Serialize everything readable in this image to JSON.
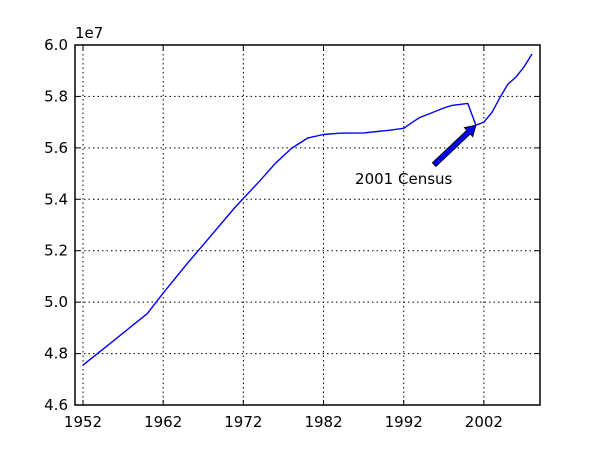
{
  "chart_data": {
    "type": "line",
    "title": "",
    "xlabel": "",
    "ylabel": "",
    "xlim": [
      1951,
      2009
    ],
    "ylim": [
      46000000,
      60000000
    ],
    "y_offset_text": "1e7",
    "x_ticks": [
      1952,
      1962,
      1972,
      1982,
      1992,
      2002
    ],
    "y_ticks": [
      46000000,
      48000000,
      50000000,
      52000000,
      54000000,
      56000000,
      58000000,
      60000000
    ],
    "x_tick_labels": [
      "1952",
      "1962",
      "1972",
      "1982",
      "1992",
      "2002"
    ],
    "y_tick_labels": [
      "4.6",
      "4.8",
      "5.0",
      "5.2",
      "5.4",
      "5.6",
      "5.8",
      "6.0"
    ],
    "grid": true,
    "series": [
      {
        "color": "#0000ff",
        "x": [
          1952,
          1955,
          1958,
          1960,
          1962,
          1965,
          1968,
          1971,
          1974,
          1976,
          1978,
          1980,
          1982,
          1984,
          1987,
          1990,
          1992,
          1993,
          1994,
          1995,
          1997,
          1998,
          2000,
          2001,
          2002,
          2003,
          2004,
          2005,
          2006,
          2007,
          2008
        ],
        "y": [
          47550000,
          48300000,
          49050000,
          49550000,
          50350000,
          51500000,
          52600000,
          53700000,
          54700000,
          55400000,
          55980000,
          56380000,
          56520000,
          56570000,
          56580000,
          56680000,
          56760000,
          56980000,
          57180000,
          57300000,
          57550000,
          57650000,
          57730000,
          56880000,
          57000000,
          57380000,
          57950000,
          58480000,
          58750000,
          59150000,
          59650000
        ]
      }
    ],
    "annotations": [
      {
        "text": "2001 Census",
        "point": [
          2001,
          56880000
        ],
        "text_anchor_data": [
          1992,
          54600000
        ],
        "arrow_tail": [
          1995.8,
          55350000
        ]
      }
    ]
  }
}
